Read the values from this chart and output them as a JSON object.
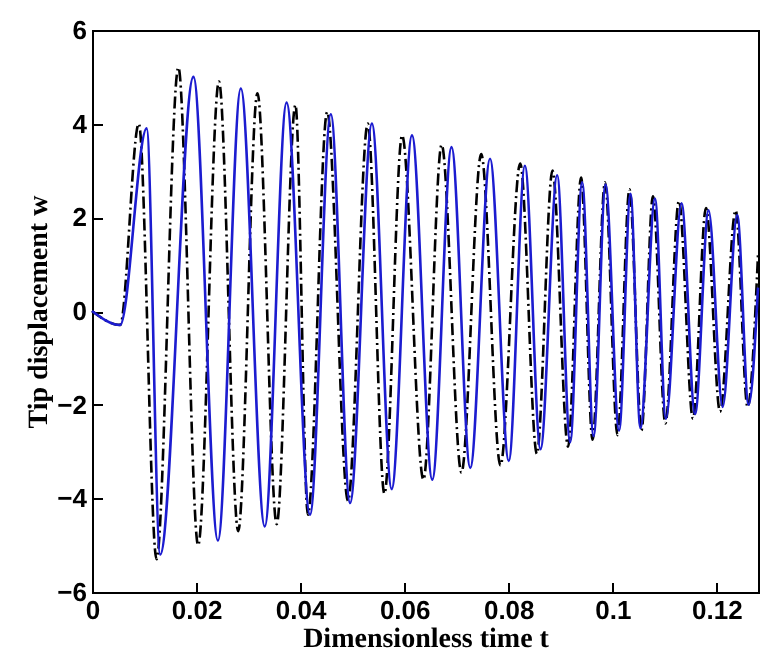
{
  "chart_data": {
    "type": "line",
    "xlabel": "Dimensionless time t",
    "ylabel": "Tip displacement w",
    "xlim": [
      0,
      0.128
    ],
    "xticks": [
      0,
      0.02,
      0.04,
      0.06,
      0.08,
      0.1,
      0.12
    ],
    "ylim": [
      -6,
      6
    ],
    "yticks": [
      -6,
      -4,
      -2,
      0,
      2,
      4,
      6
    ],
    "grid": false,
    "series": [
      {
        "color": "#000000",
        "line_style": "dashed",
        "x": [
          0,
          0.0054,
          0.009,
          0.0124,
          0.0166,
          0.0204,
          0.0244,
          0.0281,
          0.0318,
          0.0355,
          0.0391,
          0.0415,
          0.0452,
          0.0492,
          0.053,
          0.0562,
          0.0596,
          0.0637,
          0.0672,
          0.071,
          0.0748,
          0.0785,
          0.0823,
          0.0855,
          0.0885,
          0.0915,
          0.094,
          0.0962,
          0.0986,
          0.101,
          0.1033,
          0.1056,
          0.1078,
          0.1102,
          0.1128,
          0.1155,
          0.118,
          0.1207,
          0.1237,
          0.126,
          0.128
        ],
        "values": [
          0,
          -0.3,
          4.0,
          -5.3,
          5.2,
          -5.0,
          4.9,
          -4.7,
          4.65,
          -4.55,
          4.4,
          -4.35,
          4.25,
          -4.05,
          4.0,
          -3.9,
          3.75,
          -3.6,
          3.55,
          -3.45,
          3.35,
          -3.3,
          3.15,
          -3.05,
          3.0,
          -2.9,
          2.85,
          -2.75,
          2.75,
          -2.65,
          2.6,
          -2.55,
          2.45,
          -2.4,
          2.35,
          -2.3,
          2.2,
          -2.15,
          2.15,
          -2.05,
          1.2
        ]
      },
      {
        "color": "#1c1cd0",
        "line_style": "solid",
        "x": [
          0,
          0.0054,
          0.0105,
          0.0131,
          0.0195,
          0.0242,
          0.0286,
          0.0332,
          0.0374,
          0.0419,
          0.0459,
          0.0496,
          0.0538,
          0.0576,
          0.0615,
          0.0654,
          0.0691,
          0.0727,
          0.0765,
          0.0801,
          0.0832,
          0.0862,
          0.0894,
          0.0919,
          0.0942,
          0.0964,
          0.0987,
          0.1013,
          0.1035,
          0.1054,
          0.1082,
          0.1103,
          0.1133,
          0.1159,
          0.1185,
          0.1212,
          0.124,
          0.1262,
          0.128
        ],
        "values": [
          0,
          -0.3,
          3.9,
          -5.2,
          5.0,
          -4.9,
          4.75,
          -4.6,
          4.45,
          -4.35,
          4.2,
          -4.1,
          4.0,
          -3.8,
          3.75,
          -3.6,
          3.5,
          -3.35,
          3.25,
          -3.2,
          3.1,
          -2.95,
          2.9,
          -2.8,
          2.75,
          -2.67,
          2.7,
          -2.55,
          2.5,
          -2.5,
          2.4,
          -2.3,
          2.3,
          -2.2,
          2.15,
          -2.05,
          2.05,
          -2.0,
          0.5
        ]
      }
    ]
  }
}
